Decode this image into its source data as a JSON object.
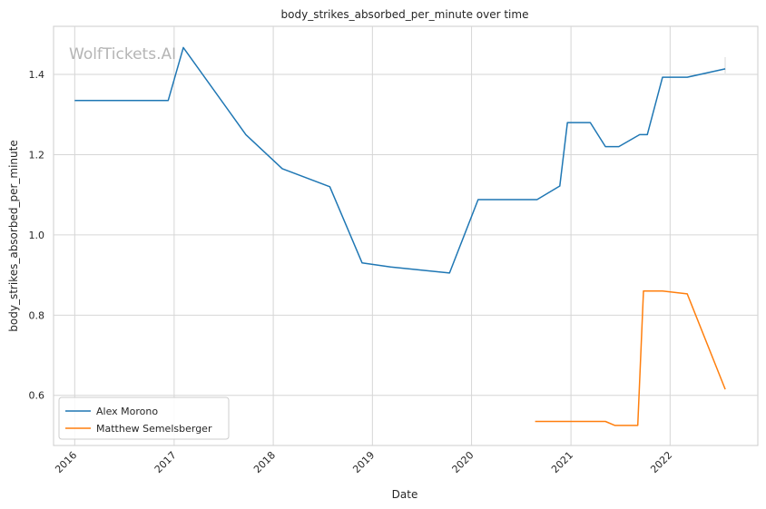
{
  "chart_data": {
    "type": "line",
    "title": "body_strikes_absorbed_per_minute over time",
    "xlabel": "Date",
    "ylabel": "body_strikes_absorbed_per_minute",
    "watermark": "WolfTickets.AI",
    "xlim": [
      "2015-10-15",
      "2022-11-20"
    ],
    "ylim": [
      0.475,
      1.52
    ],
    "x_ticks": [
      {
        "date": "2016-01-01",
        "label": "2016"
      },
      {
        "date": "2017-01-01",
        "label": "2017"
      },
      {
        "date": "2018-01-01",
        "label": "2018"
      },
      {
        "date": "2019-01-01",
        "label": "2019"
      },
      {
        "date": "2020-01-01",
        "label": "2020"
      },
      {
        "date": "2021-01-01",
        "label": "2021"
      },
      {
        "date": "2022-01-01",
        "label": "2022"
      }
    ],
    "y_ticks": [
      {
        "value": 0.6,
        "label": "0.6"
      },
      {
        "value": 0.8,
        "label": "0.8"
      },
      {
        "value": 1.0,
        "label": "1.0"
      },
      {
        "value": 1.2,
        "label": "1.2"
      },
      {
        "value": 1.4,
        "label": "1.4"
      }
    ],
    "grid": true,
    "legend_position": "bottom-left",
    "series": [
      {
        "name": "Alex Morono",
        "color": "#1f77b4",
        "points": [
          {
            "x": "2016-01-01",
            "y": 1.335
          },
          {
            "x": "2016-12-10",
            "y": 1.335
          },
          {
            "x": "2017-02-04",
            "y": 1.467
          },
          {
            "x": "2017-09-22",
            "y": 1.25
          },
          {
            "x": "2018-02-03",
            "y": 1.165
          },
          {
            "x": "2018-07-28",
            "y": 1.12
          },
          {
            "x": "2018-11-24",
            "y": 0.93
          },
          {
            "x": "2019-03-09",
            "y": 0.92
          },
          {
            "x": "2019-10-12",
            "y": 0.905
          },
          {
            "x": "2020-01-25",
            "y": 1.088
          },
          {
            "x": "2020-08-29",
            "y": 1.088
          },
          {
            "x": "2020-11-21",
            "y": 1.122
          },
          {
            "x": "2020-12-19",
            "y": 1.28
          },
          {
            "x": "2021-03-13",
            "y": 1.28
          },
          {
            "x": "2021-05-08",
            "y": 1.22
          },
          {
            "x": "2021-06-26",
            "y": 1.22
          },
          {
            "x": "2021-09-11",
            "y": 1.25
          },
          {
            "x": "2021-10-09",
            "y": 1.25
          },
          {
            "x": "2021-12-04",
            "y": 1.393
          },
          {
            "x": "2022-03-05",
            "y": 1.393
          },
          {
            "x": "2022-07-23",
            "y": 1.414
          }
        ]
      },
      {
        "name": "Matthew Semelsberger",
        "color": "#ff7f0e",
        "points": [
          {
            "x": "2020-08-22",
            "y": 0.535
          },
          {
            "x": "2021-05-08",
            "y": 0.535
          },
          {
            "x": "2021-06-12",
            "y": 0.525
          },
          {
            "x": "2021-09-04",
            "y": 0.525
          },
          {
            "x": "2021-09-25",
            "y": 0.86
          },
          {
            "x": "2021-12-04",
            "y": 0.86
          },
          {
            "x": "2022-03-05",
            "y": 0.853
          },
          {
            "x": "2022-07-23",
            "y": 0.615
          }
        ]
      }
    ]
  }
}
